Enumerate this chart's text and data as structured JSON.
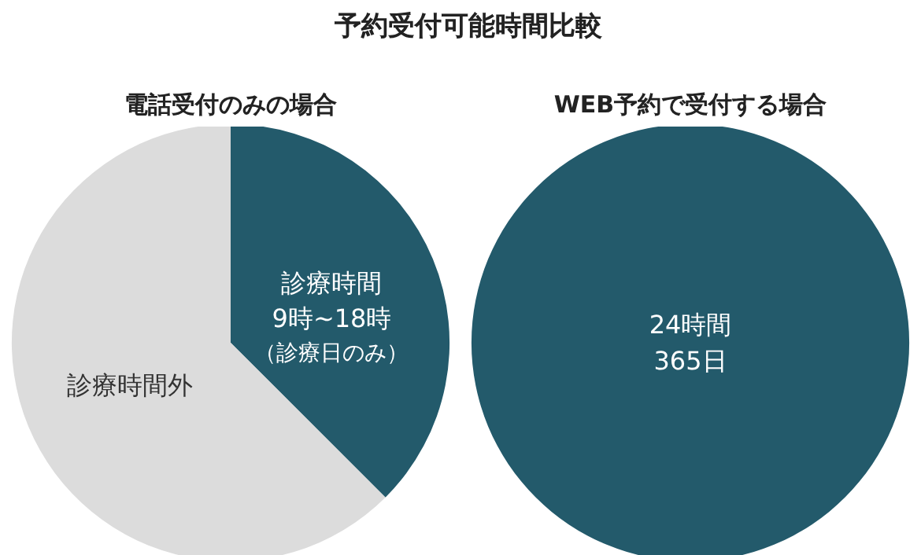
{
  "chart_data": [
    {
      "type": "pie",
      "title": "予約受付可能時間比較",
      "subtitle": "電話受付のみの場合",
      "categories": [
        "診療時間\n9時~18時",
        "診療時間外"
      ],
      "values": [
        37.5,
        62.5
      ],
      "colors": [
        "#235a6b",
        "#dcdcdc"
      ],
      "annotations": [
        "（診療日のみ）"
      ]
    },
    {
      "type": "pie",
      "subtitle": "WEB予約で受付する場合",
      "categories": [
        "24時間\n365日"
      ],
      "values": [
        100
      ],
      "colors": [
        "#235a6b"
      ]
    }
  ]
}
